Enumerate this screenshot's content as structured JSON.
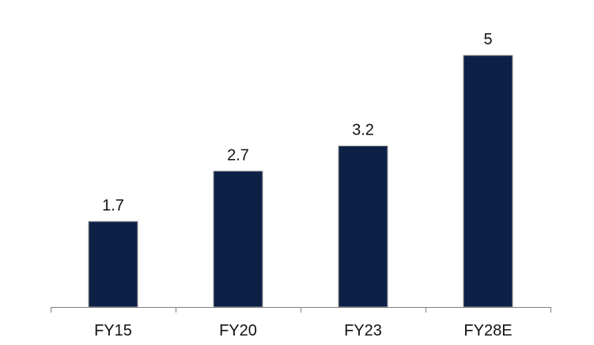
{
  "chart_data": {
    "type": "bar",
    "title": "",
    "xlabel": "",
    "ylabel": "",
    "categories": [
      "FY15",
      "FY20",
      "FY23",
      "FY28E"
    ],
    "values": [
      1.7,
      2.7,
      3.2,
      5
    ],
    "data_labels": [
      "1.7",
      "2.7",
      "3.2",
      "5"
    ],
    "ylim": [
      0,
      5.5
    ],
    "grid": false,
    "legend": "none",
    "colors": {
      "bar": "#0d2147",
      "bar_border": "#9a9a9a",
      "axis": "#7f7f7f",
      "text": "#111111"
    }
  }
}
